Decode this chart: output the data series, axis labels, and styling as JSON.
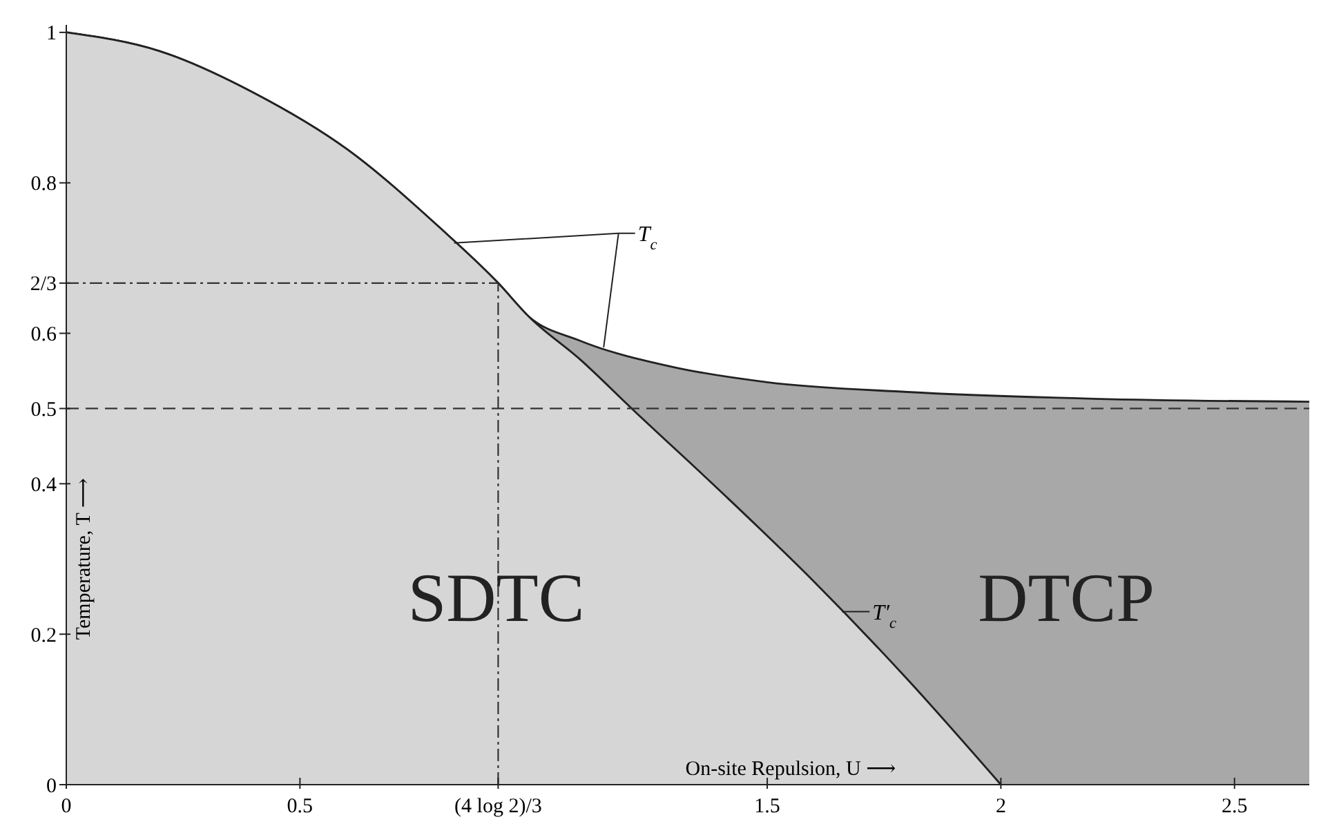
{
  "chart_data": {
    "type": "area",
    "xlabel": "On-site Repulsion, U ⟶",
    "ylabel": "Temperature, T ⟶",
    "xlim": [
      0,
      2.66
    ],
    "ylim": [
      0,
      1.01
    ],
    "xticks": [
      0,
      0.5,
      {
        "value": 0.9242,
        "label": "(4 log 2)/3"
      },
      1.5,
      2,
      2.5
    ],
    "yticks": [
      0,
      0.2,
      0.4,
      0.5,
      0.6,
      {
        "value": 0.6667,
        "label": "2/3"
      },
      0.8,
      1
    ],
    "series": [
      {
        "color": "#a8a8a8",
        "x": [
          0,
          0.2,
          0.4,
          0.6,
          0.8,
          0.924,
          0.99,
          1.1,
          1.3,
          1.5,
          1.8,
          2.2,
          2.66
        ],
        "values": [
          1,
          0.975,
          0.92,
          0.845,
          0.74,
          0.667,
          0.622,
          0.59,
          0.555,
          0.535,
          0.522,
          0.513,
          0.509
        ]
      },
      {
        "color": "#d6d6d6",
        "x": [
          0,
          0.2,
          0.4,
          0.6,
          0.8,
          0.924,
          0.99,
          1.1,
          1.21,
          1.4,
          1.6,
          1.8,
          2
        ],
        "values": [
          1,
          0.975,
          0.92,
          0.845,
          0.74,
          0.667,
          0.622,
          0.565,
          0.5,
          0.39,
          0.27,
          0.14,
          0
        ]
      }
    ],
    "ref_lines": [
      {
        "axis": "y",
        "value": 0.5,
        "line_style": "dashed"
      },
      {
        "axis": "y",
        "value": 0.6667,
        "line_style": "dotted"
      },
      {
        "axis": "x",
        "value": 0.9242,
        "line_style": "dotted"
      }
    ],
    "annotations": [
      "SDTC",
      "DTCP",
      {
        "text": "T$_{c}$",
        "x": 0.83,
        "y": 0.72
      },
      {
        "text": "T′$_{c}$",
        "x": 1.66,
        "y": 0.23
      }
    ],
    "grid": false
  }
}
